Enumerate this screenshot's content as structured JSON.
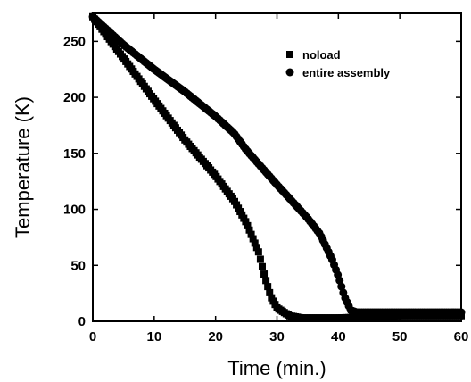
{
  "chart_data": {
    "type": "scatter",
    "title": "",
    "xlabel": "Time (min.)",
    "ylabel": "Temperature (K)",
    "xlim": [
      0,
      60
    ],
    "ylim": [
      0,
      275
    ],
    "xticks": [
      0,
      10,
      20,
      30,
      40,
      50,
      60
    ],
    "yticks": [
      0,
      50,
      100,
      150,
      200,
      250
    ],
    "grid": false,
    "legend_position": "top-right",
    "series": [
      {
        "name": "noload",
        "marker": "square",
        "color": "#000000",
        "points": [
          [
            0,
            272
          ],
          [
            5,
            235
          ],
          [
            10,
            198
          ],
          [
            15,
            162
          ],
          [
            20,
            130
          ],
          [
            23,
            108
          ],
          [
            25,
            88
          ],
          [
            27,
            62
          ],
          [
            28,
            40
          ],
          [
            29,
            22
          ],
          [
            30,
            12
          ],
          [
            32,
            5
          ],
          [
            34,
            3
          ],
          [
            36,
            3
          ],
          [
            40,
            3
          ],
          [
            45,
            4
          ],
          [
            50,
            5
          ],
          [
            55,
            5
          ],
          [
            60,
            5
          ]
        ]
      },
      {
        "name": "entire assembly",
        "marker": "circle",
        "color": "#000000",
        "points": [
          [
            0,
            272
          ],
          [
            5,
            247
          ],
          [
            10,
            225
          ],
          [
            15,
            205
          ],
          [
            20,
            183
          ],
          [
            23,
            168
          ],
          [
            25,
            153
          ],
          [
            30,
            122
          ],
          [
            35,
            92
          ],
          [
            37,
            78
          ],
          [
            39,
            55
          ],
          [
            40,
            40
          ],
          [
            41,
            22
          ],
          [
            42,
            10
          ],
          [
            43,
            8
          ],
          [
            45,
            8
          ],
          [
            50,
            8
          ],
          [
            55,
            8
          ],
          [
            60,
            8
          ]
        ]
      }
    ]
  }
}
